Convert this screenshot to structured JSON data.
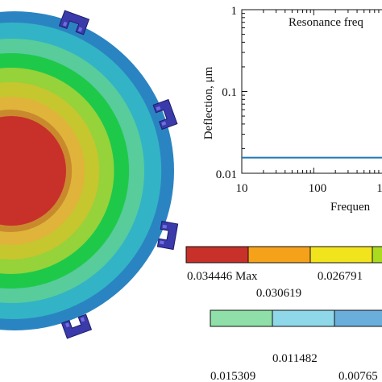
{
  "contour_colors": [
    "#2b84c2",
    "#32b4c6",
    "#58cc9b",
    "#1ec94a",
    "#96d23a",
    "#c6c62e",
    "#e0b43a",
    "#c98a2e",
    "#b9602a",
    "#c8302a"
  ],
  "bracket_color": "#3a3aaa",
  "plot": {
    "y_axis_label": "Deflection, μm",
    "x_axis_label": "Frequen",
    "annotation": "Resonance freq",
    "y_ticks": [
      "1",
      "0.1",
      "0.01"
    ],
    "x_ticks": [
      "10",
      "100",
      "1"
    ],
    "line_color": "#1f77b4"
  },
  "chart_data": {
    "type": "line",
    "xscale": "log",
    "yscale": "log",
    "xlim": [
      10,
      1000
    ],
    "ylim": [
      0.01,
      1
    ],
    "xlabel": "Frequen",
    "ylabel": "Deflection, μm",
    "x": [
      10,
      1000
    ],
    "series": [
      {
        "values": [
          0.0155,
          0.0155
        ]
      }
    ]
  },
  "legend_row1": {
    "colors": [
      "#c8302a",
      "#f5a21a",
      "#f2e41c",
      "#aadb1e"
    ],
    "labels": [
      "0.034446 Max",
      "0.030619",
      "0.026791"
    ]
  },
  "legend_row2": {
    "colors": [
      "#8ee0a8",
      "#8fd8ea",
      "#6aaedc",
      "#3a8ed0"
    ],
    "labels": [
      "0.011482",
      "0.015309",
      "0.00765"
    ]
  }
}
